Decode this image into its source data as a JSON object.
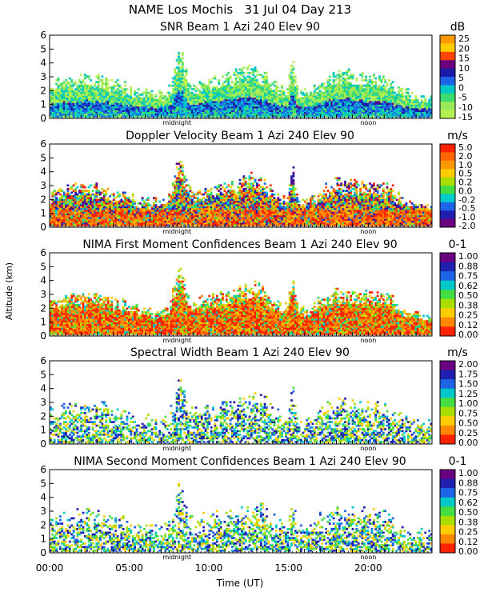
{
  "header": {
    "title": "NAME Los Mochis   31 Jul 04 Day 213"
  },
  "shared_axes": {
    "ylabel": "Altitude (km)",
    "xlabel": "Time (UT)",
    "x_ticks": [
      "00:00",
      "05:00",
      "10:00",
      "15:00",
      "20:00"
    ],
    "x_tick_hours": [
      0,
      5,
      10,
      15,
      20
    ],
    "x_range_hours": [
      0,
      24
    ],
    "y_ticks": [
      "0",
      "1",
      "2",
      "3",
      "4",
      "5",
      "6"
    ],
    "y_range_km": [
      0,
      6
    ],
    "markers": [
      {
        "label": "midnight",
        "hour": 8
      },
      {
        "label": "noon",
        "hour": 20
      }
    ]
  },
  "chart_data": [
    {
      "type": "heatmap",
      "title": "SNR Beam 1 Azi 240 Elev 90",
      "units": "dB",
      "colorbar_labels": [
        "25",
        "20",
        "15",
        "10",
        "5",
        "0",
        "-5",
        "-10",
        "-15"
      ],
      "colors": [
        "#ff9900",
        "#ffcc00",
        "#ff4400",
        "#6a0080",
        "#1a1aa8",
        "#1e64e6",
        "#00c8c8",
        "#3cdc6e",
        "#9ae85a",
        "#b4f050"
      ],
      "color_index": [
        "low",
        "high"
      ]
    },
    {
      "type": "heatmap",
      "title": "Doppler Velocity Beam 1 Azi 240 Elev 90",
      "units": "m/s",
      "colorbar_labels": [
        "5.0",
        "2.0",
        "1.0",
        "0.5",
        "0.2",
        "0.0",
        "-0.2",
        "-0.5",
        "-1.0",
        "-2.0"
      ],
      "colors": [
        "#ff2200",
        "#ff6600",
        "#ff9900",
        "#ffcc00",
        "#aadd00",
        "#44dd44",
        "#00cccc",
        "#1e64e6",
        "#2020b0",
        "#6a0080"
      ]
    },
    {
      "type": "heatmap",
      "title": "NIMA First Moment Confidences Beam 1 Azi 240 Elev 90",
      "units": "0-1",
      "colorbar_labels": [
        "1.00",
        "0.88",
        "0.75",
        "0.62",
        "0.50",
        "0.38",
        "0.25",
        "0.12",
        "0.00"
      ],
      "colors": [
        "#6a0080",
        "#2020b0",
        "#1e64e6",
        "#00c8c8",
        "#44dd44",
        "#aadd00",
        "#ffcc00",
        "#ff8800",
        "#ff2200"
      ]
    },
    {
      "type": "heatmap",
      "title": "Spectral Width Beam 1 Azi 240 Elev 90",
      "units": "m/s",
      "colorbar_labels": [
        "2.00",
        "1.75",
        "1.50",
        "1.25",
        "1.00",
        "0.75",
        "0.50",
        "0.25",
        "0.00"
      ],
      "colors": [
        "#6a0080",
        "#2020b0",
        "#1e64e6",
        "#00c8c8",
        "#44dd44",
        "#aadd00",
        "#ffcc00",
        "#ff8800",
        "#ff2200"
      ]
    },
    {
      "type": "heatmap",
      "title": "NIMA Second Moment Confidences Beam 1 Azi 240 Elev 90",
      "units": "0-1",
      "colorbar_labels": [
        "1.00",
        "0.88",
        "0.75",
        "0.62",
        "0.50",
        "0.38",
        "0.25",
        "0.12",
        "0.00"
      ],
      "colors": [
        "#6a0080",
        "#2020b0",
        "#1e64e6",
        "#00c8c8",
        "#44dd44",
        "#aadd00",
        "#ffcc00",
        "#ff8800",
        "#ff2200"
      ]
    }
  ]
}
